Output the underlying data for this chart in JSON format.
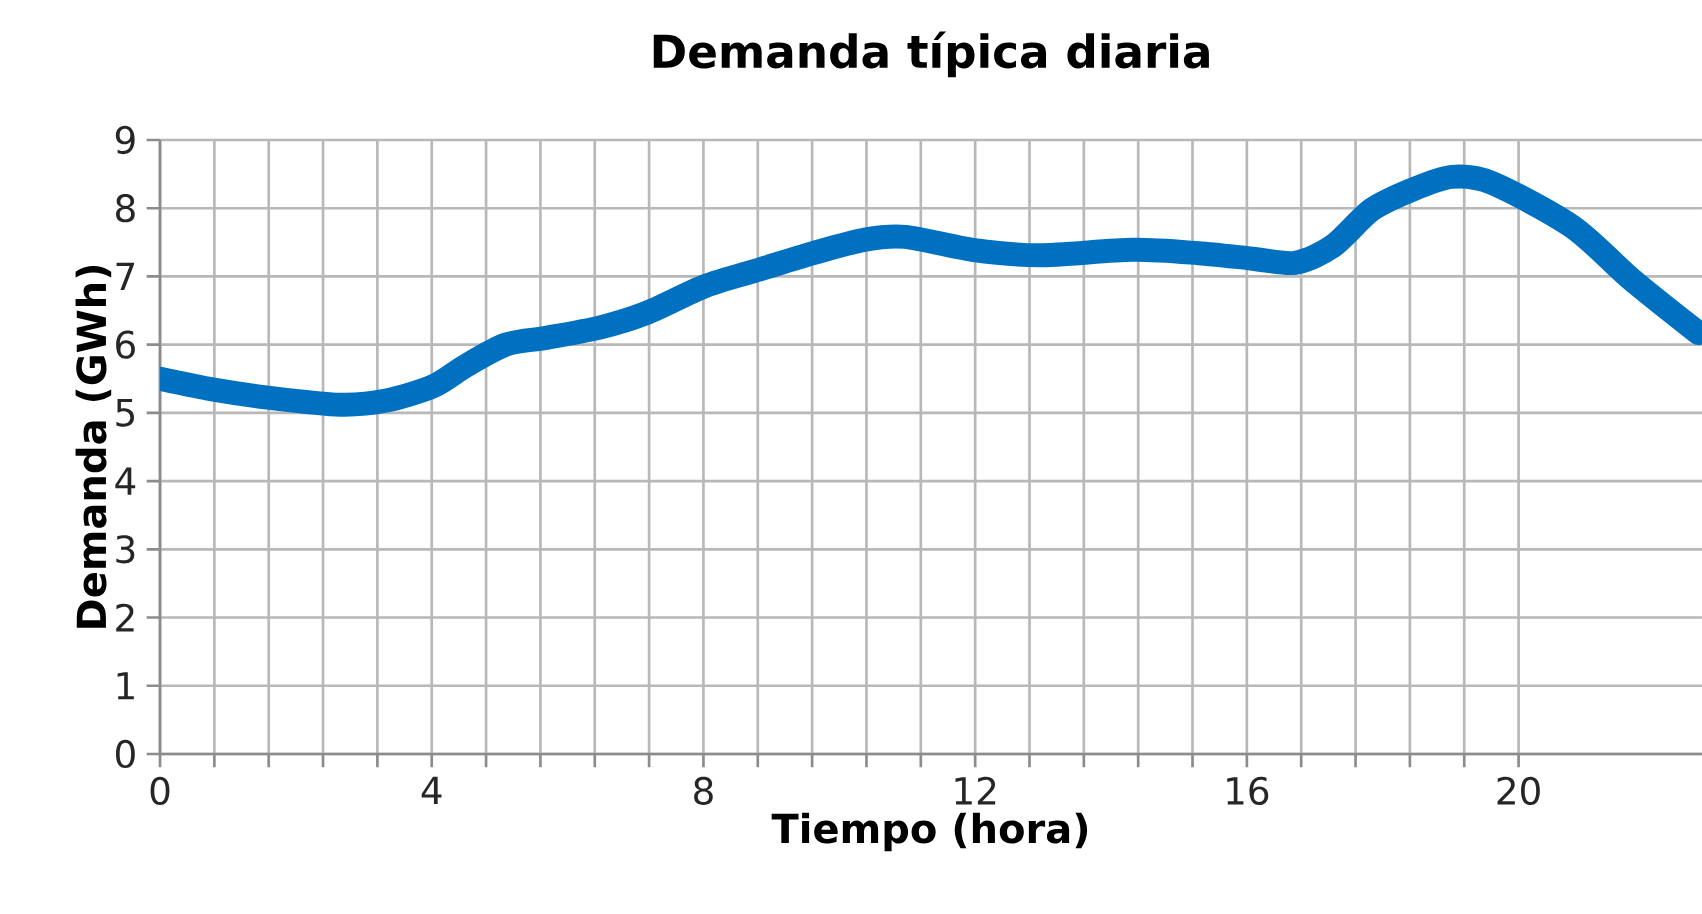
{
  "chart_data": {
    "type": "line",
    "title": "Demanda típica diaria",
    "xlabel": "Tiempo (hora)",
    "ylabel": "Demanda (GWh)",
    "x": [
      0,
      0.79,
      1.62,
      2.65,
      3.33,
      4.02,
      4.5,
      5.09,
      5.68,
      6.47,
      7.15,
      8.03,
      8.82,
      9.61,
      10.38,
      10.97,
      11.96,
      12.94,
      14.31,
      15.29,
      16.08,
      16.71,
      17.26,
      17.84,
      18.43,
      19.02,
      19.61,
      20.79,
      21.67,
      22.65
    ],
    "series": [
      {
        "color": "#0070c0",
        "values": [
          5.5,
          5.34,
          5.22,
          5.12,
          5.18,
          5.39,
          5.69,
          6.0,
          6.1,
          6.25,
          6.46,
          6.86,
          7.1,
          7.34,
          7.54,
          7.58,
          7.39,
          7.31,
          7.39,
          7.34,
          7.26,
          7.2,
          7.44,
          7.98,
          8.27,
          8.46,
          8.37,
          7.73,
          6.95,
          6.17
        ]
      }
    ],
    "xlim": [
      0,
      22.7
    ],
    "xticks": [
      0,
      4,
      8,
      12,
      16,
      20
    ],
    "ylim": [
      0,
      9
    ],
    "yticks": [
      0,
      1,
      2,
      3,
      4,
      5,
      6,
      7,
      8,
      9
    ],
    "grid": true,
    "marker": "none",
    "line_style": "solid"
  }
}
